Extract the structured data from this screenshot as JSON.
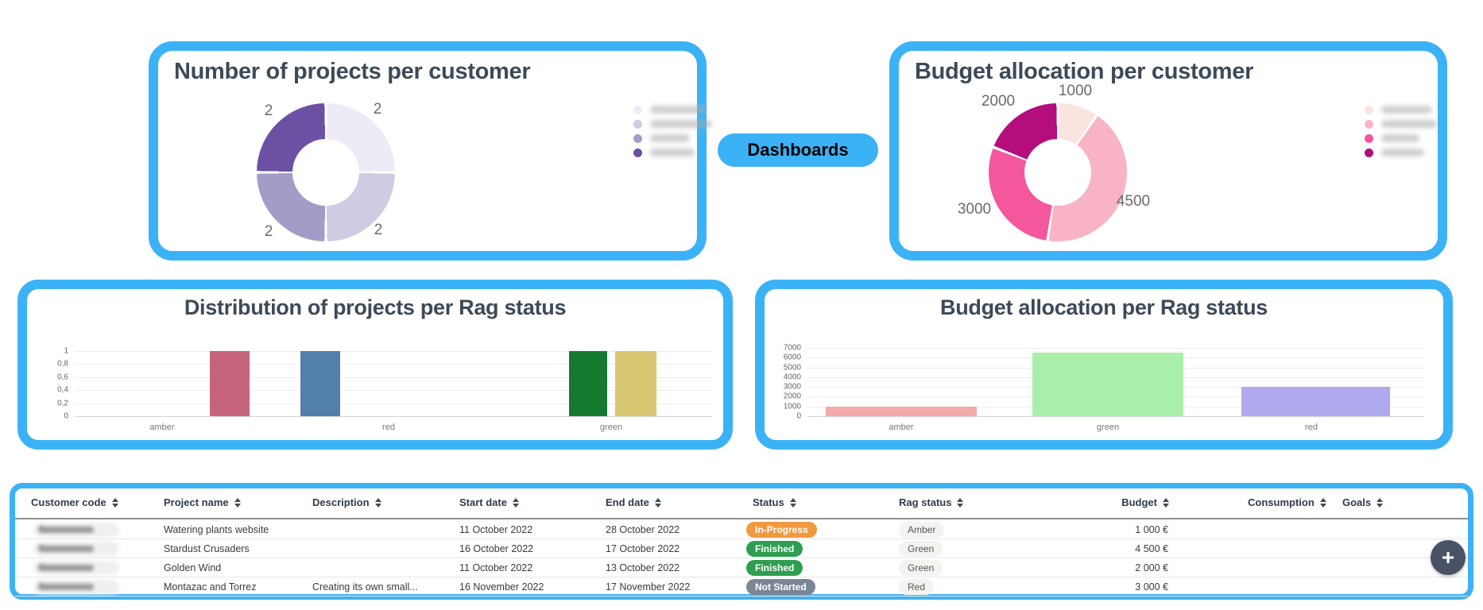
{
  "dashboards_button": {
    "label": "Dashboards"
  },
  "panels": {
    "projects_per_customer": {
      "title": "Number of projects per customer"
    },
    "budget_per_customer": {
      "title": "Budget allocation per customer"
    },
    "projects_per_rag": {
      "title": "Distribution of projects per Rag status"
    },
    "budget_per_rag": {
      "title": "Budget allocation per Rag status"
    }
  },
  "chart_data": [
    {
      "id": "projects-per-customer",
      "type": "pie",
      "subtype": "donut",
      "title": "Number of projects per customer",
      "values": [
        2,
        2,
        2,
        2
      ],
      "point_labels": [
        "2",
        "2",
        "2",
        "2"
      ],
      "colors": [
        "#EDEBF6",
        "#D0CAE3",
        "#A49CC7",
        "#6C50A3"
      ],
      "legend_position": "right",
      "legend_labels_redacted": true,
      "legend_labels": [
        "(blurred)",
        "(blurred)",
        "(blurred)",
        "(blurred)"
      ]
    },
    {
      "id": "budget-per-customer",
      "type": "pie",
      "subtype": "donut",
      "title": "Budget allocation per customer",
      "values": [
        1000,
        4500,
        3000,
        2000
      ],
      "point_labels": [
        "1000",
        "4500",
        "3000",
        "2000"
      ],
      "colors": [
        "#FAE4DF",
        "#F8B4C4",
        "#F4579B",
        "#B30E7C"
      ],
      "legend_position": "right",
      "legend_labels_redacted": true,
      "legend_labels": [
        "(blurred)",
        "(blurred)",
        "(blurred)",
        "(blurred)"
      ]
    },
    {
      "id": "projects-per-rag",
      "type": "bar",
      "title": "Distribution of projects per Rag status",
      "categories": [
        "amber",
        "red",
        "green"
      ],
      "bars": [
        {
          "value": 1,
          "color": "#C5647B"
        },
        {
          "value": 1,
          "color": "#537FAC"
        },
        {
          "value": 1,
          "color": "#157A2F"
        },
        {
          "value": 1,
          "color": "#D9C673"
        }
      ],
      "ylim": [
        0,
        1
      ],
      "yticks": [
        "1",
        "0,8",
        "0,6",
        "0,4",
        "0,2",
        "0"
      ],
      "grid": true
    },
    {
      "id": "budget-per-rag",
      "type": "bar",
      "title": "Budget allocation per Rag status",
      "categories": [
        "amber",
        "green",
        "red"
      ],
      "values": [
        1000,
        6500,
        3000
      ],
      "colors": [
        "#F2AAAA",
        "#A9EFA9",
        "#B0A9ED"
      ],
      "ylim": [
        0,
        7000
      ],
      "yticks": [
        "7000",
        "6000",
        "5000",
        "4000",
        "3000",
        "2000",
        "1000",
        "0"
      ],
      "grid": true
    }
  ],
  "table": {
    "columns": [
      "Customer code",
      "Project name",
      "Description",
      "Start date",
      "End date",
      "Status",
      "Rag status",
      "Budget",
      "Consumption",
      "Goals"
    ],
    "rows": [
      {
        "customer_code_redacted": true,
        "project_name": "Watering plants website",
        "description": "",
        "start_date": "11 October 2022",
        "end_date": "28 October 2022",
        "status": "In-Progress",
        "rag_status": "Amber",
        "budget": "1 000 €",
        "consumption": "",
        "goals": ""
      },
      {
        "customer_code_redacted": true,
        "project_name": "Stardust Crusaders",
        "description": "",
        "start_date": "16 October 2022",
        "end_date": "17 October 2022",
        "status": "Finished",
        "rag_status": "Green",
        "budget": "4 500 €",
        "consumption": "",
        "goals": ""
      },
      {
        "customer_code_redacted": true,
        "project_name": "Golden Wind",
        "description": "",
        "start_date": "11 October 2022",
        "end_date": "13 October 2022",
        "status": "Finished",
        "rag_status": "Green",
        "budget": "2 000 €",
        "consumption": "",
        "goals": ""
      },
      {
        "customer_code_redacted": true,
        "project_name": "Montazac and Torrez",
        "description": "Creating its own small...",
        "start_date": "16 November 2022",
        "end_date": "17 November 2022",
        "status": "Not Started",
        "rag_status": "Red",
        "budget": "3 000 €",
        "consumption": "",
        "goals": ""
      }
    ],
    "status_colors": {
      "In-Progress": "#F1993F",
      "Finished": "#2E9E50",
      "Not Started": "#7A8694"
    }
  },
  "fab": {
    "label": "+"
  }
}
